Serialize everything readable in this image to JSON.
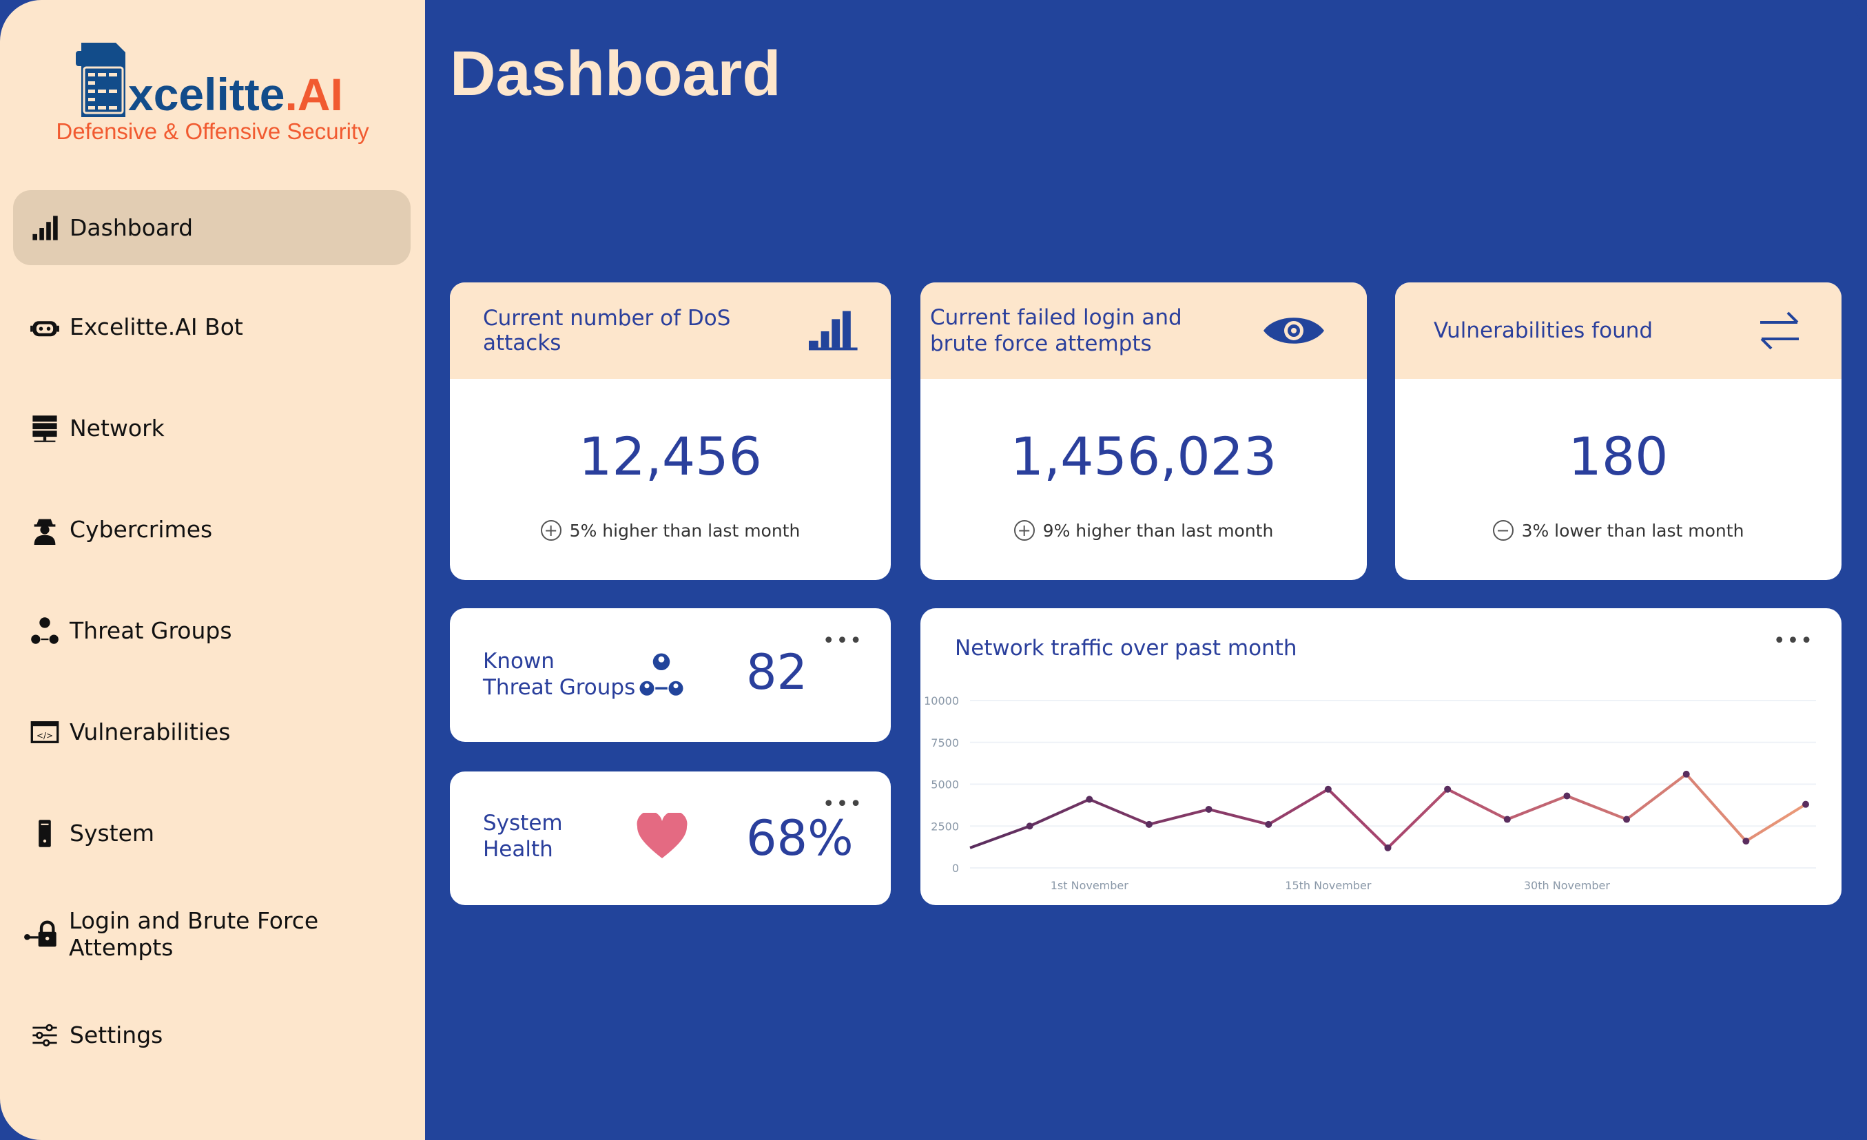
{
  "brand": {
    "name_main": "xcelitte",
    "name_suffix": ".AI",
    "tagline": "Defensive & Offensive Security"
  },
  "sidebar": {
    "items": [
      {
        "label": "Dashboard",
        "icon": "bar-chart-icon",
        "active": true
      },
      {
        "label": "Excelitte.AI Bot",
        "icon": "robot-icon"
      },
      {
        "label": "Network",
        "icon": "server-icon"
      },
      {
        "label": "Cybercrimes",
        "icon": "hacker-icon"
      },
      {
        "label": "Threat Groups",
        "icon": "group-icon"
      },
      {
        "label": "Vulnerabilities",
        "icon": "code-window-icon"
      },
      {
        "label": "System",
        "icon": "computer-tower-icon"
      },
      {
        "label": "Login and Brute Force Attempts",
        "icon": "key-lock-icon"
      },
      {
        "label": "Settings",
        "icon": "sliders-icon"
      }
    ]
  },
  "header": {
    "title": "Dashboard"
  },
  "stats": [
    {
      "title": "Current number of DoS attacks",
      "value": "12,456",
      "delta": "5% higher than last month",
      "sign": "+"
    },
    {
      "title": "Current failed login and brute force attempts",
      "value": "1,456,023",
      "delta": "9% higher than last month",
      "sign": "+"
    },
    {
      "title": "Vulnerabilities found",
      "value": "180",
      "delta": "3% lower than last month",
      "sign": "−"
    }
  ],
  "threat_groups": {
    "label1": "Known",
    "label2": "Threat Groups",
    "value": "82",
    "more": "•••"
  },
  "system_health": {
    "label1": "System",
    "label2": "Health",
    "value": "68%",
    "more": "•••"
  },
  "chart_data": {
    "type": "line",
    "title": "Network traffic over past month",
    "ylim": [
      0,
      10000
    ],
    "yticks": [
      0,
      2500,
      5000,
      7500,
      10000
    ],
    "xtick_labels": [
      {
        "label": "1st November",
        "index": 2
      },
      {
        "label": "15th November",
        "index": 6
      },
      {
        "label": "30th November",
        "index": 10
      }
    ],
    "values": [
      1200,
      2500,
      4100,
      2600,
      3500,
      2600,
      4700,
      1200,
      4700,
      2900,
      4300,
      2900,
      5600,
      1600,
      3800
    ],
    "colors": {
      "start": "#5a2d5e",
      "end": "#eb9a78"
    },
    "grid": true,
    "more": "•••"
  }
}
